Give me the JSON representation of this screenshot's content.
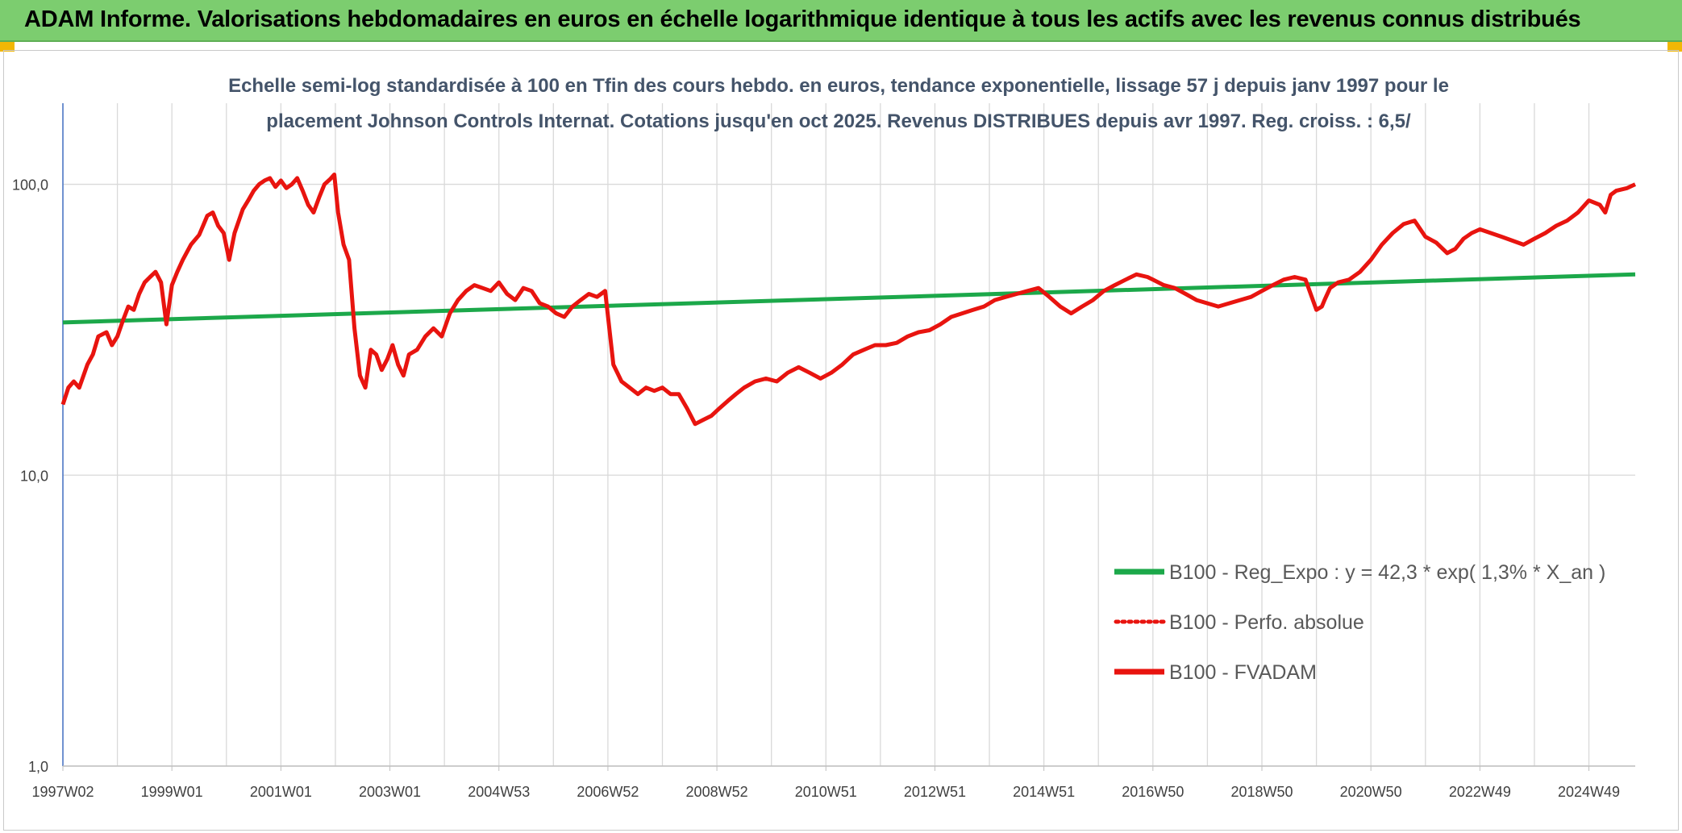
{
  "header": {
    "title": "ADAM Informe. Valorisations hebdomadaires en euros en échelle logarithmique identique à tous les actifs avec les revenus connus distribués"
  },
  "colors": {
    "banner": "#7ccd6f",
    "regression": "#1ca84a",
    "fvadam": "#e8140f",
    "perfo": "#e8140f",
    "grid": "#d9d9d9"
  },
  "chart_data": {
    "type": "line",
    "subtitle_lines": [
      "Echelle semi-log standardisée à 100 en Tfin des cours hebdo. en euros, tendance exponentielle, lissage 57 j depuis janv 1997 pour le",
      "placement Johnson Controls Internat. Cotations jusqu'en oct 2025. Revenus DISTRIBUES depuis avr 1997. Reg. croiss. : 6,5/"
    ],
    "y_scale": "log",
    "ylim": [
      1,
      190
    ],
    "xlim": [
      1997.0,
      2025.85
    ],
    "y_ticks": [
      {
        "value": 1,
        "label": "1,0"
      },
      {
        "value": 10,
        "label": "10,0"
      },
      {
        "value": 100,
        "label": "100,0"
      }
    ],
    "x_ticks": [
      {
        "value": 1997.0,
        "label": "1997W02"
      },
      {
        "value": 1999.0,
        "label": "1999W01"
      },
      {
        "value": 2001.0,
        "label": "2001W01"
      },
      {
        "value": 2003.0,
        "label": "2003W01"
      },
      {
        "value": 2005.0,
        "label": "2004W53"
      },
      {
        "value": 2007.0,
        "label": "2006W52"
      },
      {
        "value": 2009.0,
        "label": "2008W52"
      },
      {
        "value": 2011.0,
        "label": "2010W51"
      },
      {
        "value": 2013.0,
        "label": "2012W51"
      },
      {
        "value": 2015.0,
        "label": "2014W51"
      },
      {
        "value": 2017.0,
        "label": "2016W50"
      },
      {
        "value": 2019.0,
        "label": "2018W50"
      },
      {
        "value": 2021.0,
        "label": "2020W50"
      },
      {
        "value": 2023.0,
        "label": "2022W49"
      },
      {
        "value": 2025.0,
        "label": "2024W49"
      }
    ],
    "x_gridlines": [
      1997.0,
      1998.0,
      1999.0,
      2000.0,
      2001.0,
      2002.0,
      2003.0,
      2004.0,
      2005.0,
      2006.0,
      2007.0,
      2008.0,
      2009.0,
      2010.0,
      2011.0,
      2012.0,
      2013.0,
      2014.0,
      2015.0,
      2016.0,
      2017.0,
      2018.0,
      2019.0,
      2020.0,
      2021.0,
      2022.0,
      2023.0,
      2024.0,
      2025.0
    ],
    "series": [
      {
        "name": "B100 - Reg_Expo : y = 42,3 * exp( 1,3% *  X_an )",
        "style": "solid-green",
        "x": [
          1997.0,
          2025.85
        ],
        "y": [
          33.5,
          49.0
        ]
      },
      {
        "name": "B100 - Perfo. absolue",
        "style": "dotted-red",
        "x": [],
        "y": []
      },
      {
        "name": "B100 - FVADAM",
        "style": "solid-red",
        "x": [
          1997.0,
          1997.1,
          1997.2,
          1997.3,
          1997.45,
          1997.55,
          1997.65,
          1997.8,
          1997.9,
          1998.0,
          1998.1,
          1998.2,
          1998.3,
          1998.4,
          1998.5,
          1998.6,
          1998.7,
          1998.8,
          1998.9,
          1999.0,
          1999.1,
          1999.2,
          1999.35,
          1999.5,
          1999.65,
          1999.75,
          1999.85,
          1999.95,
          2000.05,
          2000.15,
          2000.3,
          2000.4,
          2000.5,
          2000.6,
          2000.7,
          2000.8,
          2000.9,
          2001.0,
          2001.1,
          2001.2,
          2001.3,
          2001.4,
          2001.5,
          2001.6,
          2001.7,
          2001.8,
          2001.9,
          2001.98,
          2002.05,
          2002.15,
          2002.25,
          2002.35,
          2002.45,
          2002.55,
          2002.65,
          2002.75,
          2002.85,
          2002.95,
          2003.05,
          2003.15,
          2003.25,
          2003.35,
          2003.5,
          2003.65,
          2003.8,
          2003.95,
          2004.1,
          2004.25,
          2004.4,
          2004.55,
          2004.7,
          2004.85,
          2005.0,
          2005.15,
          2005.3,
          2005.45,
          2005.6,
          2005.75,
          2005.9,
          2006.05,
          2006.2,
          2006.35,
          2006.5,
          2006.65,
          2006.8,
          2006.95,
          2007.1,
          2007.25,
          2007.4,
          2007.55,
          2007.7,
          2007.85,
          2008.0,
          2008.15,
          2008.3,
          2008.45,
          2008.6,
          2008.75,
          2008.9,
          2009.05,
          2009.2,
          2009.35,
          2009.5,
          2009.7,
          2009.9,
          2010.1,
          2010.3,
          2010.5,
          2010.7,
          2010.9,
          2011.1,
          2011.3,
          2011.5,
          2011.7,
          2011.9,
          2012.1,
          2012.3,
          2012.5,
          2012.7,
          2012.9,
          2013.1,
          2013.3,
          2013.5,
          2013.7,
          2013.9,
          2014.1,
          2014.3,
          2014.5,
          2014.7,
          2014.9,
          2015.1,
          2015.3,
          2015.5,
          2015.7,
          2015.9,
          2016.1,
          2016.3,
          2016.5,
          2016.7,
          2016.9,
          2017.0,
          2017.2,
          2017.4,
          2017.6,
          2017.8,
          2018.0,
          2018.2,
          2018.4,
          2018.6,
          2018.8,
          2019.0,
          2019.2,
          2019.4,
          2019.6,
          2019.8,
          2020.0,
          2020.1,
          2020.15,
          2020.25,
          2020.4,
          2020.6,
          2020.8,
          2021.0,
          2021.2,
          2021.4,
          2021.6,
          2021.8,
          2022.0,
          2022.2,
          2022.4,
          2022.55,
          2022.7,
          2022.85,
          2023.0,
          2023.2,
          2023.4,
          2023.6,
          2023.8,
          2024.0,
          2024.2,
          2024.4,
          2024.6,
          2024.8,
          2025.0,
          2025.2,
          2025.3,
          2025.4,
          2025.5,
          2025.6,
          2025.7,
          2025.8,
          2025.85
        ],
        "y": [
          17.5,
          20,
          21,
          20,
          24,
          26,
          30,
          31,
          28,
          30,
          34,
          38,
          37,
          42,
          46,
          48,
          50,
          46,
          33,
          45,
          50,
          55,
          62,
          67,
          78,
          80,
          72,
          68,
          55,
          68,
          82,
          88,
          95,
          100,
          103,
          105,
          98,
          103,
          97,
          100,
          105,
          95,
          85,
          80,
          90,
          100,
          104,
          108,
          80,
          62,
          55,
          32,
          22,
          20,
          27,
          26,
          23,
          25,
          28,
          24,
          22,
          26,
          27,
          30,
          32,
          30,
          36,
          40,
          43,
          45,
          44,
          43,
          46,
          42,
          40,
          44,
          43,
          39,
          38,
          36,
          35,
          38,
          40,
          42,
          41,
          43,
          24,
          21,
          20,
          19,
          20,
          19.5,
          20,
          19,
          19,
          17,
          15,
          15.5,
          16,
          17,
          18,
          19,
          20,
          21,
          21.5,
          21,
          22.5,
          23.5,
          22.5,
          21.5,
          22.5,
          24,
          26,
          27,
          28,
          28,
          28.5,
          30,
          31,
          31.5,
          33,
          35,
          36,
          37,
          38,
          40,
          41,
          42,
          43,
          44,
          41,
          38,
          36,
          38,
          40,
          43,
          45,
          47,
          49,
          48,
          47,
          45,
          44,
          42,
          40,
          39,
          38,
          39,
          40,
          41,
          43,
          45,
          47,
          48,
          47,
          37,
          38,
          40,
          44,
          46,
          47,
          50,
          55,
          62,
          68,
          73,
          75,
          66,
          63,
          58,
          60,
          65,
          68,
          70,
          68,
          66,
          64,
          62,
          65,
          68,
          72,
          75,
          80,
          88,
          85,
          80,
          92,
          95,
          96,
          97,
          99,
          100
        ]
      }
    ],
    "legend": [
      {
        "label": "B100 - Reg_Expo : y = 42,3 * exp( 1,3% *  X_an )",
        "style": "solid-green"
      },
      {
        "label": "B100 - Perfo. absolue",
        "style": "dotted-red"
      },
      {
        "label": "B100 - FVADAM",
        "style": "solid-red"
      }
    ],
    "legend_position": "right"
  }
}
